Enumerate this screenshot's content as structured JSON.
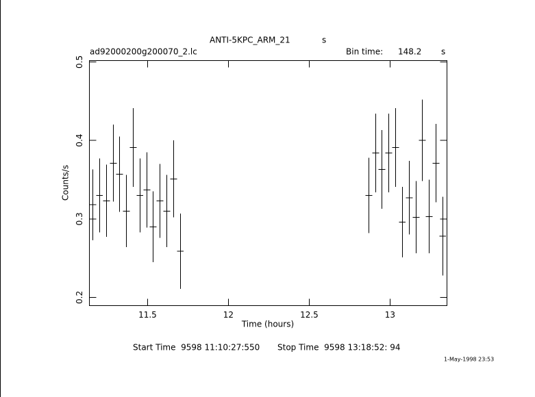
{
  "chart_data": {
    "type": "errorbar",
    "title": "ANTI-5KPC_ARM_21",
    "title_unit": "s",
    "subtitle": "ad92000200g200070_2.lc",
    "bin_label": "Bin time:",
    "bin_time": "148.2",
    "bin_unit": "s",
    "xlabel": "Time (hours)",
    "ylabel": "Counts/s",
    "start_label": "Start Time  9598 11:10:27:550",
    "stop_label": "Stop Time  9598 13:18:52: 94",
    "date": "1-May-1998 23:53",
    "color": "#000000",
    "xerr": 0.0206,
    "x": [
      11.161,
      11.203,
      11.246,
      11.288,
      11.326,
      11.369,
      11.411,
      11.453,
      11.496,
      11.534,
      11.576,
      11.619,
      11.661,
      11.703,
      12.869,
      12.911,
      12.949,
      12.992,
      13.034,
      13.076,
      13.119,
      13.161,
      13.199,
      13.242,
      13.284,
      13.326
    ],
    "values": [
      0.318,
      0.33,
      0.323,
      0.371,
      0.357,
      0.31,
      0.391,
      0.33,
      0.337,
      0.29,
      0.323,
      0.31,
      0.351,
      0.259,
      0.33,
      0.384,
      0.363,
      0.384,
      0.391,
      0.296,
      0.327,
      0.302,
      0.4,
      0.303,
      0.371,
      0.278
    ],
    "errors": [
      0.045,
      0.047,
      0.046,
      0.049,
      0.048,
      0.046,
      0.05,
      0.047,
      0.048,
      0.045,
      0.047,
      0.046,
      0.049,
      0.048,
      0.048,
      0.05,
      0.05,
      0.05,
      0.05,
      0.045,
      0.047,
      0.046,
      0.052,
      0.047,
      0.05,
      0.05
    ],
    "xlim": [
      11.14,
      13.352
    ],
    "ylim": [
      0.1895,
      0.5017
    ],
    "xticks": [
      11.5,
      12,
      12.5,
      13
    ],
    "yticks": [
      0.2,
      0.3,
      0.4,
      0.5
    ]
  }
}
